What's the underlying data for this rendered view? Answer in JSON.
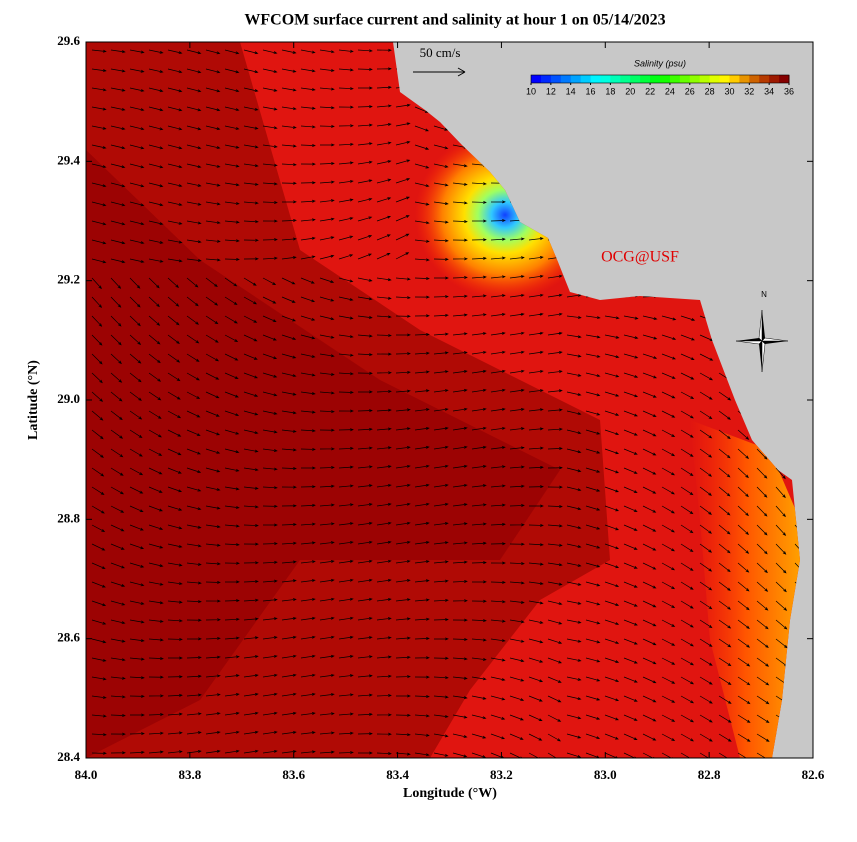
{
  "title": "WFCOM surface current and salinity at hour 1 on 05/14/2023",
  "map": {
    "xlabel": "Longitude (°W)",
    "ylabel": "Latitude (°N)",
    "xlim": [
      84.0,
      82.6
    ],
    "ylim": [
      28.4,
      29.6
    ],
    "xticks": [
      {
        "value": 84,
        "label": "84.0"
      },
      83.8,
      83.6,
      83.4,
      83.2,
      {
        "value": 83,
        "label": "83.0"
      },
      82.8,
      82.6
    ],
    "yticks": [
      28.4,
      28.6,
      28.8,
      {
        "value": 29,
        "label": "29.0"
      },
      29.2,
      29.4,
      29.6
    ]
  },
  "colorbar": {
    "title": "Salinity (psu)",
    "lim": [
      10,
      36
    ],
    "ticks": [
      10,
      12,
      14,
      16,
      18,
      20,
      22,
      24,
      26,
      28,
      30,
      32,
      34,
      36
    ]
  },
  "scale_label": "50 cm/s",
  "credit": "OCG@USF",
  "compass": "N"
}
